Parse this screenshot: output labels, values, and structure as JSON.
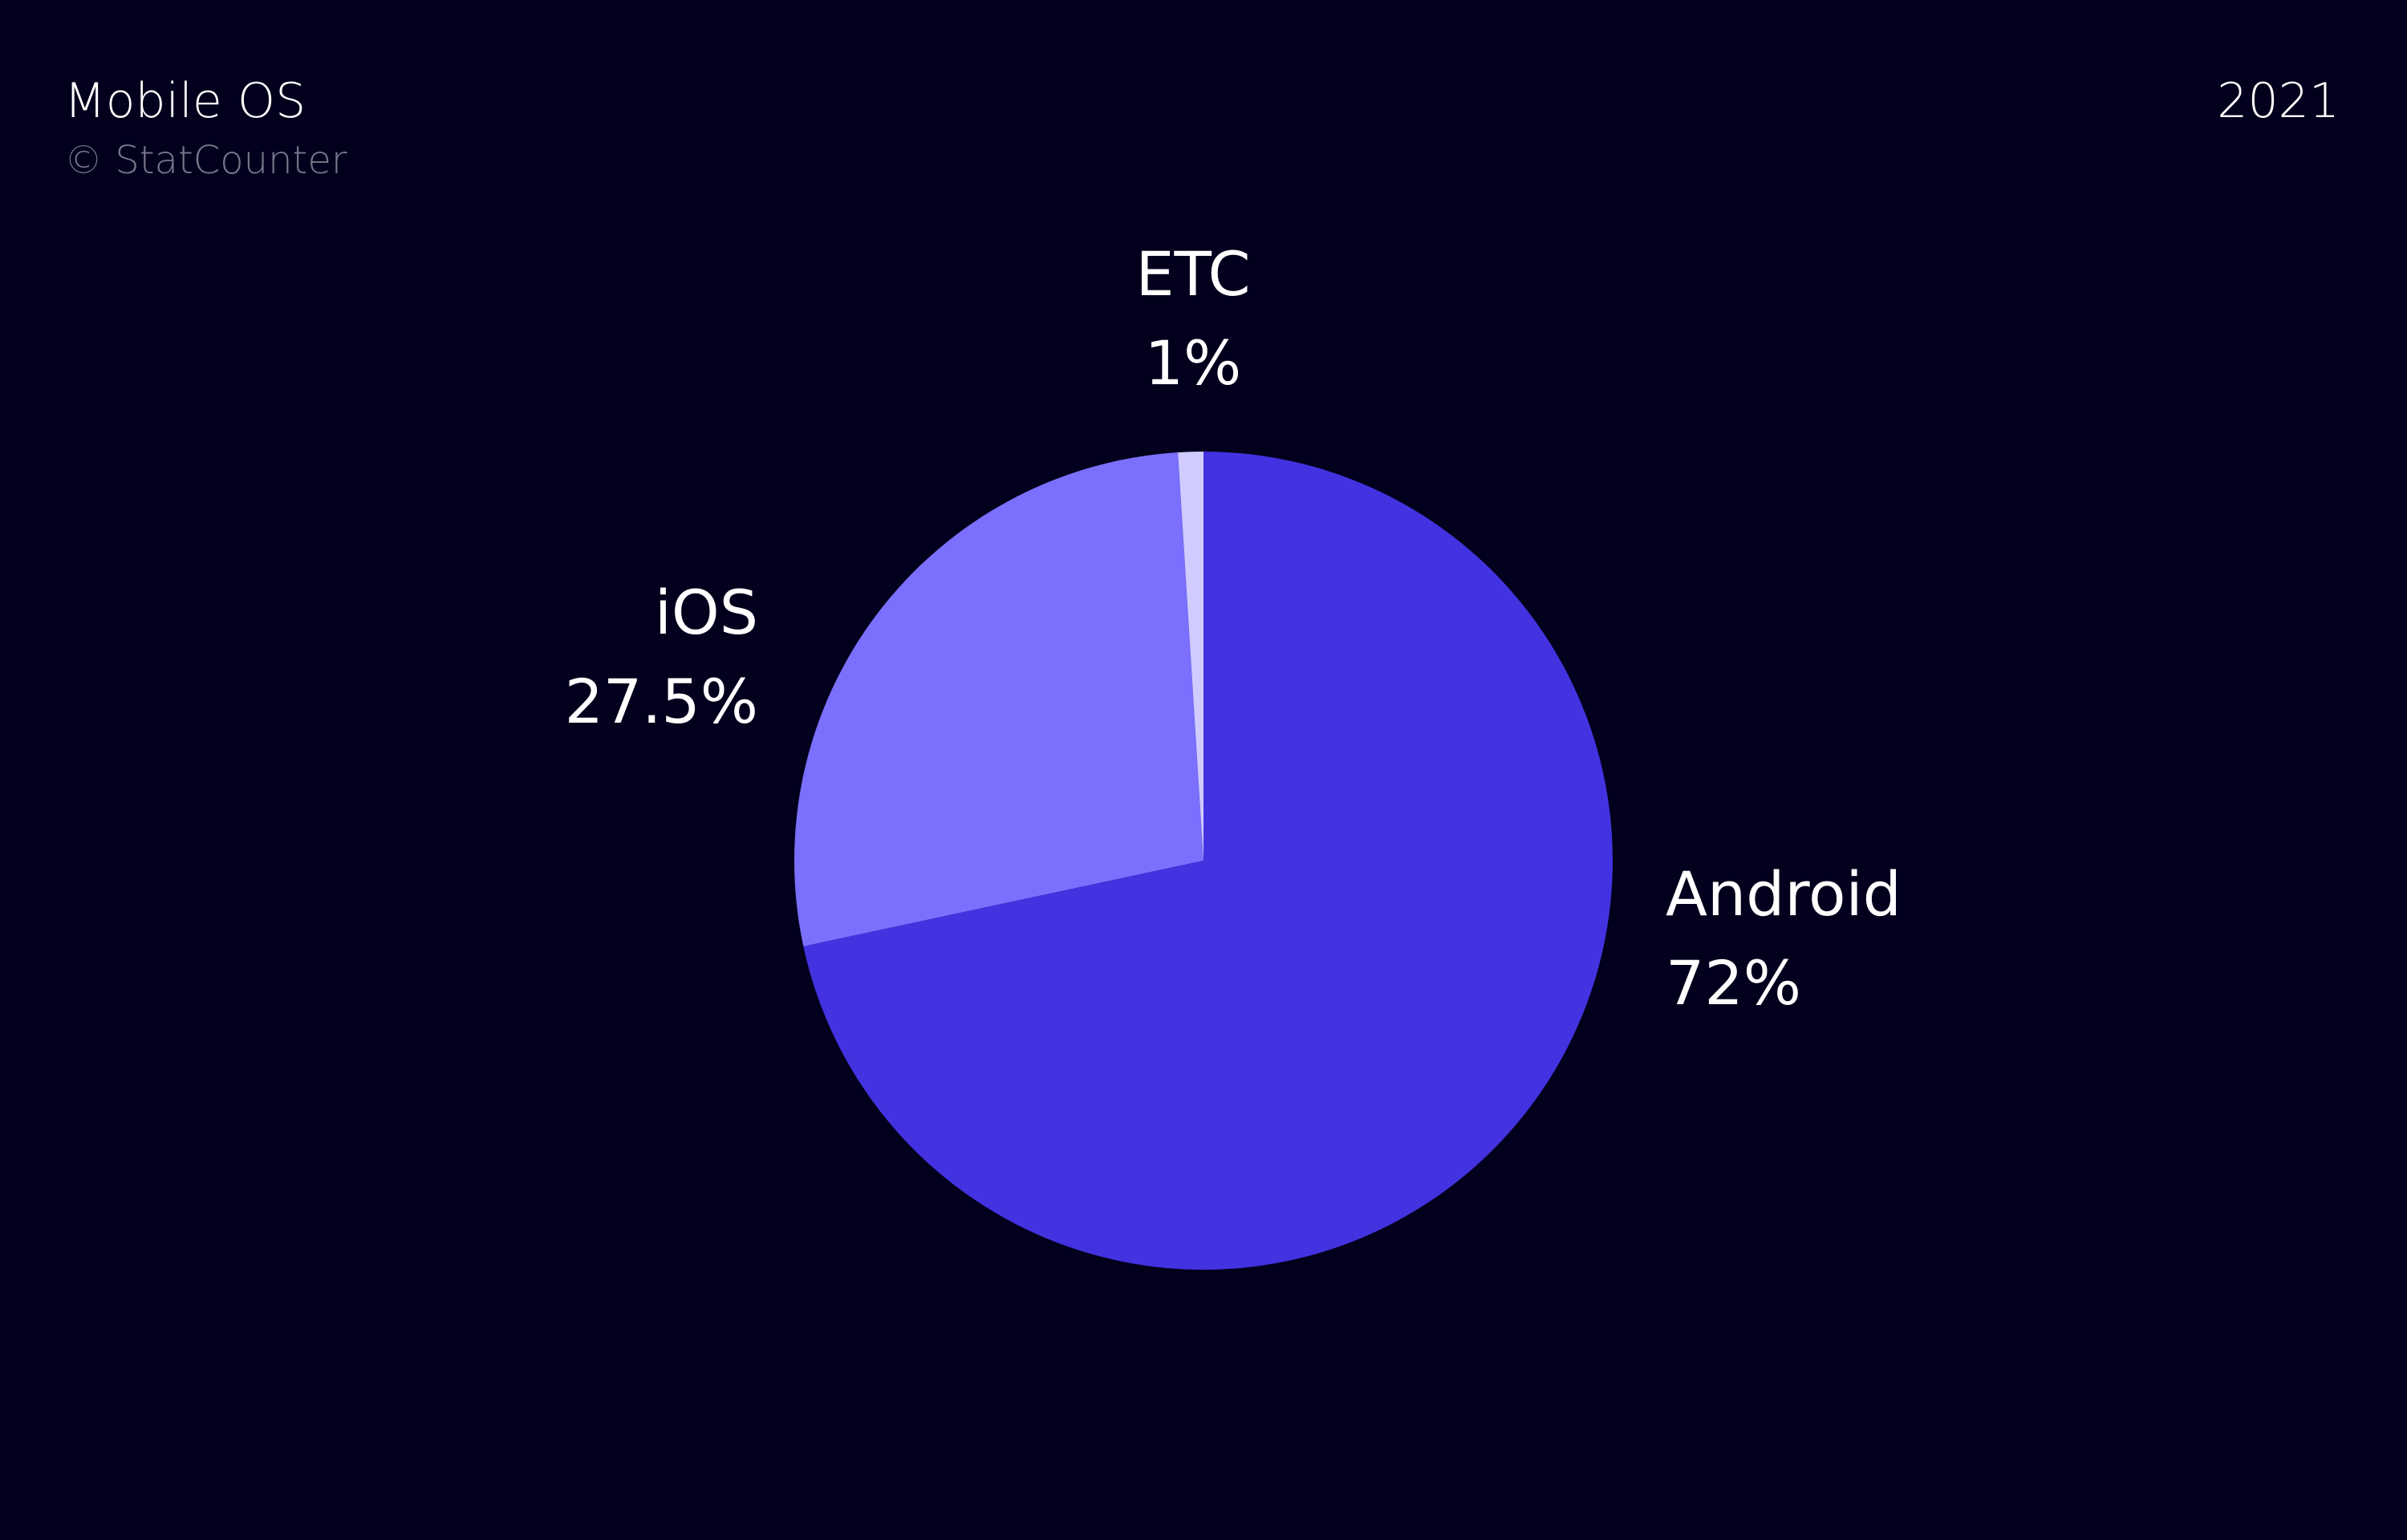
{
  "header": {
    "title": "Mobile OS",
    "source": "© StatCounter",
    "year": "2021"
  },
  "chart_data": {
    "type": "pie",
    "title": "Mobile OS",
    "start": "top",
    "direction": "clockwise",
    "slices": [
      {
        "label": "Android",
        "value": 72,
        "value_label": "72%",
        "color": "#4232e0"
      },
      {
        "label": "iOS",
        "value": 27.5,
        "value_label": "27.5%",
        "color": "#7b6ffd"
      },
      {
        "label": "ETC",
        "value": 1,
        "value_label": "1%",
        "color": "#d0ccff"
      }
    ]
  },
  "colors": {
    "background": "#02001c",
    "text": "#ffffff",
    "source_text": "#78778a"
  }
}
